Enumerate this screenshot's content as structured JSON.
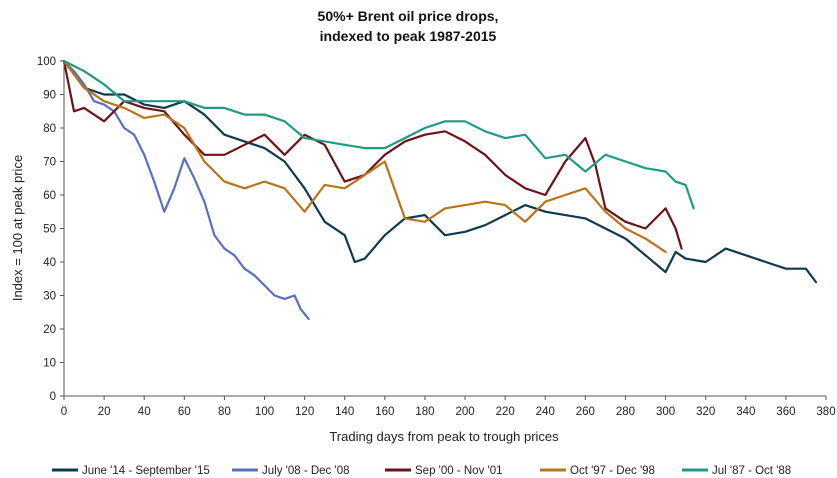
{
  "chart_data": {
    "type": "line",
    "title_line1": "50%+ Brent oil price drops,",
    "title_line2": "indexed to peak 1987-2015",
    "xlabel": "Trading days from peak to trough prices",
    "ylabel": "Index = 100 at peak price",
    "xlim": [
      0,
      380
    ],
    "ylim": [
      0,
      100
    ],
    "x_ticks": [
      0,
      20,
      40,
      60,
      80,
      100,
      120,
      140,
      160,
      180,
      200,
      220,
      240,
      260,
      280,
      300,
      320,
      340,
      360,
      380
    ],
    "y_ticks": [
      0,
      10,
      20,
      30,
      40,
      50,
      60,
      70,
      80,
      90,
      100
    ],
    "grid": false,
    "legend_position": "bottom",
    "series": [
      {
        "name": "June '14 - September '15",
        "color": "#0e3a4f",
        "x": [
          0,
          10,
          20,
          30,
          40,
          50,
          60,
          70,
          80,
          90,
          100,
          110,
          120,
          130,
          140,
          145,
          150,
          160,
          170,
          180,
          190,
          200,
          210,
          220,
          230,
          240,
          250,
          260,
          270,
          280,
          290,
          300,
          305,
          310,
          320,
          330,
          340,
          350,
          360,
          370,
          375
        ],
        "y": [
          100,
          92,
          90,
          90,
          87,
          86,
          88,
          84,
          78,
          76,
          74,
          70,
          62,
          52,
          48,
          40,
          41,
          48,
          53,
          54,
          48,
          49,
          51,
          54,
          57,
          55,
          54,
          53,
          50,
          47,
          42,
          37,
          43,
          41,
          40,
          44,
          42,
          40,
          38,
          38,
          34
        ]
      },
      {
        "name": "July '08 - Dec '08",
        "color": "#5b6fc0",
        "x": [
          0,
          5,
          10,
          15,
          20,
          25,
          30,
          35,
          40,
          45,
          50,
          55,
          60,
          65,
          70,
          75,
          80,
          85,
          90,
          95,
          100,
          105,
          110,
          115,
          118,
          122
        ],
        "y": [
          100,
          97,
          93,
          88,
          87,
          85,
          80,
          78,
          72,
          64,
          55,
          62,
          71,
          65,
          58,
          48,
          44,
          42,
          38,
          36,
          33,
          30,
          29,
          30,
          26,
          23
        ]
      },
      {
        "name": "Sep '00 - Nov '01",
        "color": "#6b1416",
        "x": [
          0,
          5,
          10,
          20,
          30,
          40,
          50,
          60,
          70,
          80,
          90,
          100,
          110,
          120,
          130,
          140,
          150,
          160,
          170,
          180,
          190,
          200,
          210,
          220,
          230,
          240,
          250,
          260,
          265,
          270,
          280,
          290,
          300,
          305,
          308
        ],
        "y": [
          100,
          85,
          86,
          82,
          88,
          86,
          85,
          78,
          72,
          72,
          75,
          78,
          72,
          78,
          75,
          64,
          66,
          72,
          76,
          78,
          79,
          76,
          72,
          66,
          62,
          60,
          70,
          77,
          69,
          56,
          52,
          50,
          56,
          50,
          44
        ]
      },
      {
        "name": "Oct '97 - Dec '98",
        "color": "#b8741a",
        "x": [
          0,
          10,
          20,
          30,
          40,
          50,
          60,
          70,
          80,
          90,
          100,
          110,
          120,
          130,
          140,
          150,
          160,
          170,
          180,
          190,
          200,
          210,
          220,
          230,
          240,
          250,
          260,
          270,
          280,
          290,
          300
        ],
        "y": [
          100,
          92,
          88,
          86,
          83,
          84,
          80,
          70,
          64,
          62,
          64,
          62,
          55,
          63,
          62,
          66,
          70,
          53,
          52,
          56,
          57,
          58,
          57,
          52,
          58,
          60,
          62,
          55,
          50,
          47,
          43
        ]
      },
      {
        "name": "Jul '87 - Oct '88",
        "color": "#1f9a85",
        "x": [
          0,
          10,
          20,
          30,
          40,
          50,
          60,
          70,
          80,
          90,
          100,
          110,
          120,
          130,
          140,
          150,
          160,
          170,
          180,
          190,
          200,
          210,
          220,
          230,
          240,
          250,
          260,
          270,
          280,
          290,
          300,
          305,
          310,
          314
        ],
        "y": [
          100,
          97,
          93,
          88,
          88,
          88,
          88,
          86,
          86,
          84,
          84,
          82,
          77,
          76,
          75,
          74,
          74,
          77,
          80,
          82,
          82,
          79,
          77,
          78,
          71,
          72,
          67,
          72,
          70,
          68,
          67,
          64,
          63,
          56
        ]
      }
    ]
  }
}
